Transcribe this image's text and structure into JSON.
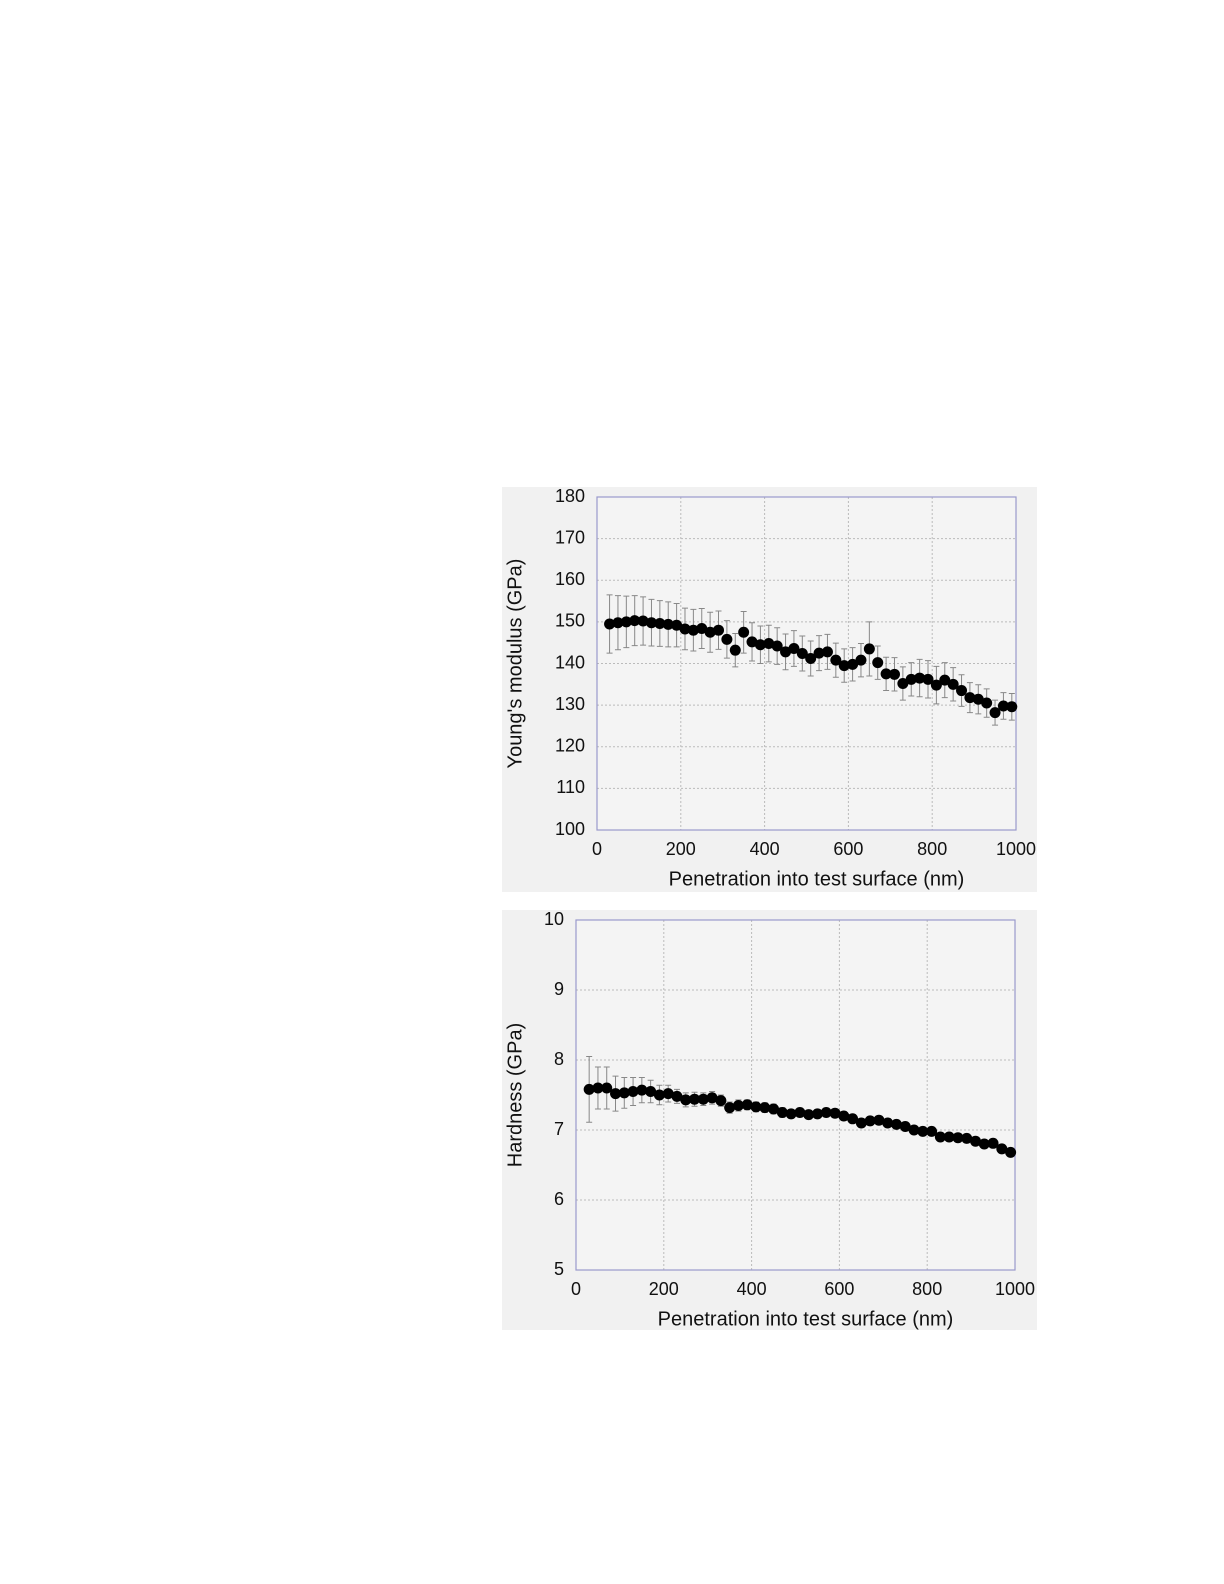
{
  "chart_data": [
    {
      "type": "scatter",
      "x_label": "Penetration into test surface (nm)",
      "y_label": "Young's modulus (GPa)",
      "x": [
        30,
        50,
        70,
        90,
        110,
        130,
        150,
        170,
        190,
        210,
        230,
        250,
        270,
        290,
        310,
        330,
        350,
        370,
        390,
        410,
        430,
        450,
        470,
        490,
        510,
        530,
        550,
        570,
        590,
        610,
        630,
        650,
        670,
        690,
        710,
        730,
        750,
        770,
        790,
        810,
        830,
        850,
        870,
        890,
        910,
        930,
        950,
        970,
        990
      ],
      "values": [
        149.5,
        149.8,
        150,
        150.3,
        150.2,
        149.8,
        149.6,
        149.4,
        149.2,
        148.3,
        148,
        148.4,
        147.5,
        148,
        145.8,
        143.2,
        147.5,
        145.2,
        144.5,
        144.8,
        144.2,
        142.8,
        143.6,
        142.4,
        141.2,
        142.5,
        142.8,
        140.8,
        139.5,
        139.8,
        140.8,
        143.5,
        140.2,
        137.5,
        137.4,
        135.2,
        136.2,
        136.5,
        136.2,
        134.8,
        136,
        135,
        133.5,
        131.8,
        131.4,
        130.5,
        128.2,
        129.8,
        129.6
      ],
      "errors": [
        7,
        6.5,
        6.2,
        6,
        5.8,
        5.6,
        5.5,
        5.4,
        5.2,
        5,
        5,
        4.8,
        4.8,
        4.6,
        4.5,
        4,
        5,
        4.6,
        4.5,
        4.4,
        4.4,
        4.3,
        4.3,
        4.2,
        4.2,
        4.2,
        4.2,
        4.1,
        4,
        4,
        4,
        6.5,
        4,
        4,
        4,
        4,
        4,
        4.5,
        4.5,
        4.5,
        4.2,
        4,
        3.8,
        3.6,
        3.5,
        3.4,
        3,
        3.2,
        3.2
      ],
      "color": "#000000",
      "error_color": "#888888",
      "xlim": [
        0,
        1000
      ],
      "xticks": [
        0,
        200,
        400,
        600,
        800,
        1000
      ],
      "ylim": [
        100,
        180
      ],
      "yticks": [
        100,
        110,
        120,
        130,
        140,
        150,
        160,
        170,
        180
      ],
      "grid": true
    },
    {
      "type": "scatter",
      "x_label": "Penetration into test surface (nm)",
      "y_label": "Hardness (GPa)",
      "x": [
        30,
        50,
        70,
        90,
        110,
        130,
        150,
        170,
        190,
        210,
        230,
        250,
        270,
        290,
        310,
        330,
        350,
        370,
        390,
        410,
        430,
        450,
        470,
        490,
        510,
        530,
        550,
        570,
        590,
        610,
        630,
        650,
        670,
        690,
        710,
        730,
        750,
        770,
        790,
        810,
        830,
        850,
        870,
        890,
        910,
        930,
        950,
        970,
        990
      ],
      "values": [
        7.58,
        7.6,
        7.6,
        7.52,
        7.53,
        7.55,
        7.57,
        7.55,
        7.5,
        7.52,
        7.48,
        7.43,
        7.44,
        7.44,
        7.46,
        7.42,
        7.32,
        7.35,
        7.36,
        7.33,
        7.32,
        7.3,
        7.25,
        7.23,
        7.25,
        7.22,
        7.23,
        7.25,
        7.24,
        7.2,
        7.16,
        7.1,
        7.13,
        7.14,
        7.1,
        7.08,
        7.05,
        7,
        6.98,
        6.98,
        6.9,
        6.9,
        6.89,
        6.88,
        6.84,
        6.8,
        6.81,
        6.73,
        6.68
      ],
      "errors": [
        0.47,
        0.3,
        0.3,
        0.25,
        0.22,
        0.2,
        0.18,
        0.16,
        0.14,
        0.12,
        0.1,
        0.1,
        0.1,
        0.09,
        0.09,
        0.08,
        0.08,
        0.08,
        0.07,
        0.07,
        0.07,
        0.07,
        0.07,
        0.06,
        0.06,
        0.06,
        0.06,
        0.06,
        0.06,
        0.06,
        0.06,
        0.06,
        0.06,
        0.05,
        0.05,
        0.05,
        0.05,
        0.05,
        0.05,
        0.05,
        0.05,
        0.05,
        0.05,
        0.05,
        0.05,
        0.05,
        0.05,
        0.05,
        0.05
      ],
      "color": "#000000",
      "error_color": "#888888",
      "xlim": [
        0,
        1000
      ],
      "xticks": [
        0,
        200,
        400,
        600,
        800,
        1000
      ],
      "ylim": [
        5,
        10
      ],
      "yticks": [
        5,
        6,
        7,
        8,
        9,
        10
      ],
      "grid": true
    }
  ]
}
